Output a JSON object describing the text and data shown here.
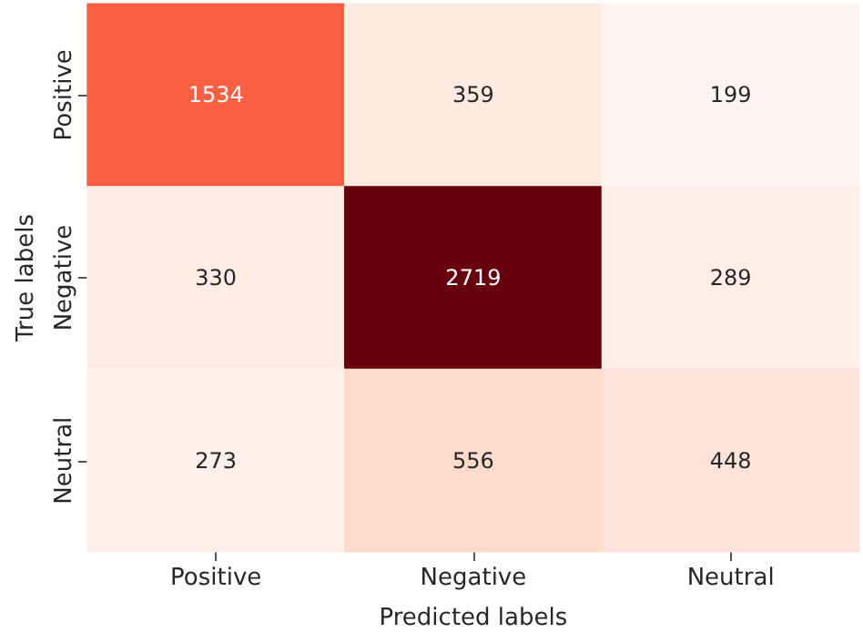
{
  "chart_data": {
    "type": "heatmap",
    "xlabel": "Predicted labels",
    "ylabel": "True labels",
    "categories": [
      "Positive",
      "Negative",
      "Neutral"
    ],
    "y_categories": [
      "Positive",
      "Negative",
      "Neutral"
    ],
    "cells": [
      [
        1534,
        359,
        199
      ],
      [
        330,
        2719,
        289
      ],
      [
        273,
        556,
        448
      ]
    ],
    "data_labels": true
  }
}
